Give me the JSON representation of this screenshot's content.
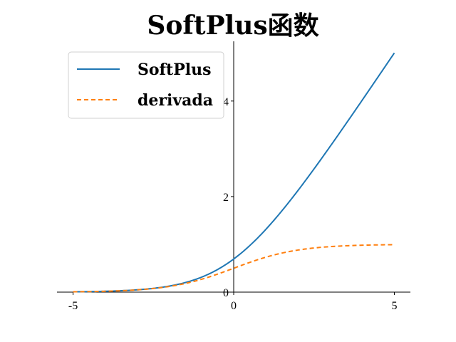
{
  "chart_data": {
    "type": "line",
    "title": "SoftPlus函数",
    "xlabel": "",
    "ylabel": "",
    "xlim": [
      -5.5,
      5.5
    ],
    "ylim": [
      0,
      5.25
    ],
    "x_ticks": [
      "-5",
      "0",
      "5"
    ],
    "y_ticks": [
      "0",
      "2",
      "4"
    ],
    "x": [
      -5,
      -4,
      -3,
      -2,
      -1,
      0,
      1,
      2,
      3,
      4,
      5
    ],
    "series": [
      {
        "name": "SoftPlus",
        "color": "#1f77b4",
        "style": "solid",
        "values": [
          0.0067,
          0.0181,
          0.0486,
          0.1269,
          0.3133,
          0.6931,
          1.3133,
          2.1269,
          3.0486,
          4.0181,
          5.0067
        ]
      },
      {
        "name": "derivada",
        "color": "#ff7f0e",
        "style": "dashed",
        "values": [
          0.0067,
          0.018,
          0.0474,
          0.1192,
          0.2689,
          0.5,
          0.7311,
          0.8808,
          0.9526,
          0.982,
          0.9933
        ]
      }
    ],
    "legend": "top-left",
    "grid": false,
    "spines": "centered"
  }
}
